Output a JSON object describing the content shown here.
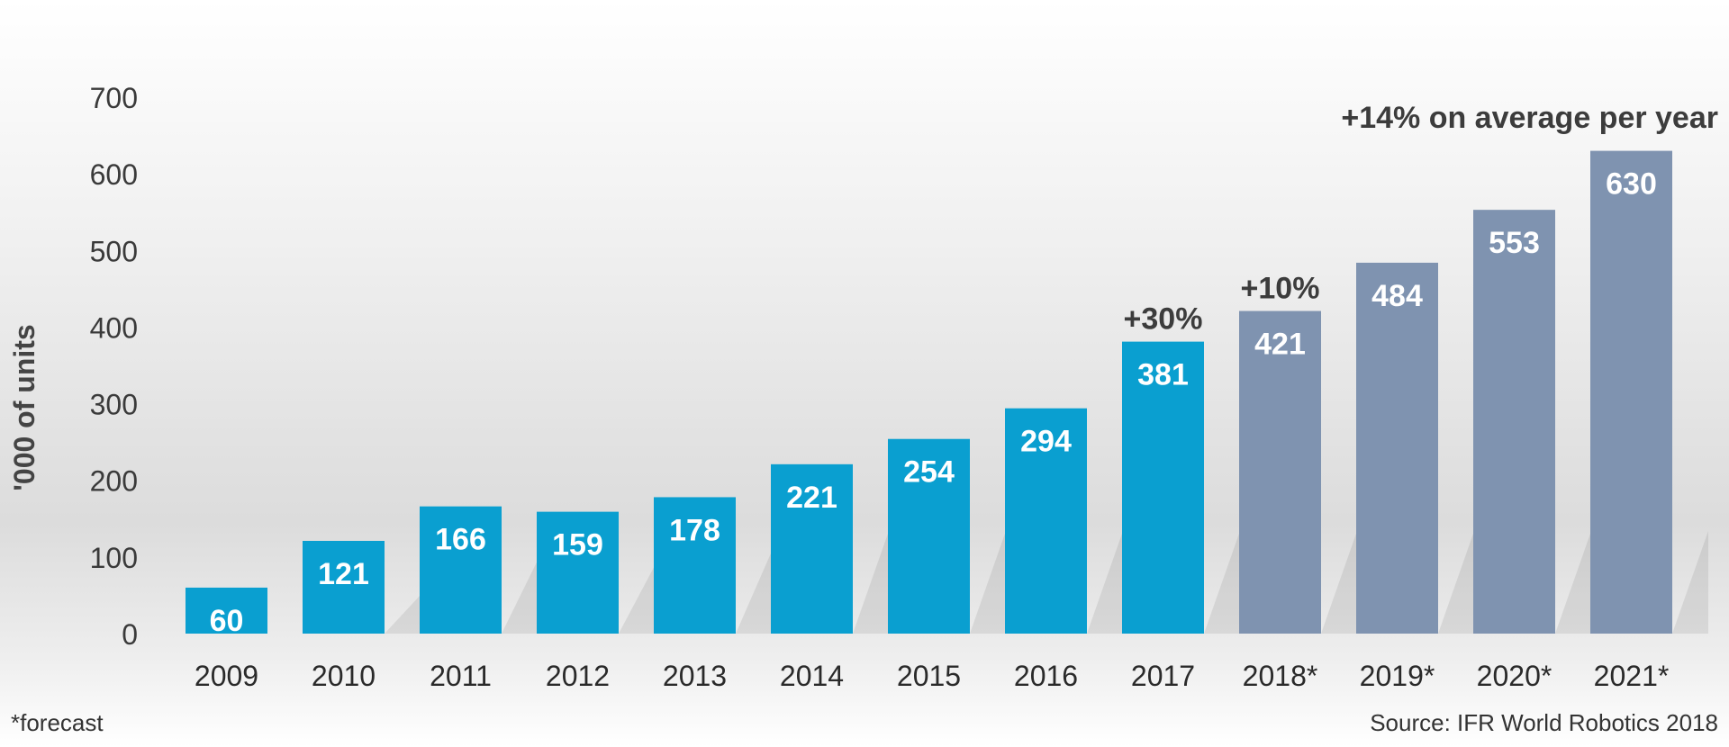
{
  "chart_data": {
    "type": "bar",
    "categories": [
      "2009",
      "2010",
      "2011",
      "2012",
      "2013",
      "2014",
      "2015",
      "2016",
      "2017",
      "2018*",
      "2019*",
      "2020*",
      "2021*"
    ],
    "values": [
      60,
      121,
      166,
      159,
      178,
      221,
      254,
      294,
      381,
      421,
      484,
      553,
      630
    ],
    "forecast": [
      false,
      false,
      false,
      false,
      false,
      false,
      false,
      false,
      false,
      true,
      true,
      true,
      true
    ],
    "ylabel": "'000 of units",
    "xlabel": "",
    "ylim": [
      0,
      700
    ],
    "yticks": [
      0,
      100,
      200,
      300,
      400,
      500,
      600,
      700
    ],
    "grid": false,
    "colors": {
      "actual": "#0a9fd0",
      "forecast": "#7f93b0"
    },
    "annotations": [
      {
        "category": "2017",
        "text": "+30%"
      },
      {
        "category": "2018*",
        "text": "+10%"
      },
      {
        "category": "2021*",
        "text": "+14% on average per year"
      }
    ],
    "footnote": "*forecast",
    "source": "Source: IFR World Robotics 2018"
  }
}
